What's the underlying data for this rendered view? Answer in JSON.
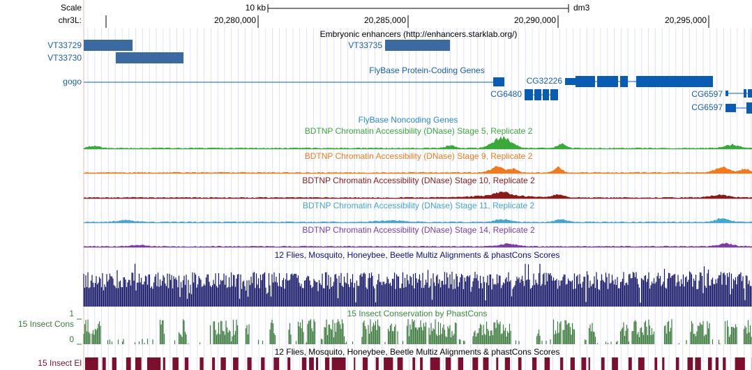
{
  "scale": {
    "label": "Scale",
    "bar": "10 kb",
    "assembly": "dm3"
  },
  "ruler": {
    "chrom": "chr3L:",
    "ticks": [
      "20,280,000",
      "20,285,000",
      "20,290,000",
      "20,295,000"
    ]
  },
  "tracks": {
    "enhancers": {
      "title": "Embryonic enhancers (http://enhancers.starklab.org/)",
      "items": [
        "VT33729",
        "VT33730",
        "VT33735"
      ]
    },
    "protein_genes": {
      "title": "FlyBase Protein-Coding Genes",
      "genes": [
        "gogo",
        "CG32226",
        "CG6480",
        "CG6597",
        "CG6597"
      ]
    },
    "noncoding": {
      "title": "FlyBase Noncoding Genes"
    },
    "dnase": [
      {
        "title": "BDTNP Chromatin Accessibility (DNase) Stage 5, Replicate 2",
        "color": "#3aa83a"
      },
      {
        "title": "BDTNP Chromatin Accessibility (DNase) Stage 9, Replicate 2",
        "color": "#f07a1e"
      },
      {
        "title": "BDTNP Chromatin Accessibility (DNase) Stage 10, Replicate 2",
        "color": "#8b1a1a"
      },
      {
        "title": "BDTNP Chromatin Accessibility (DNase) Stage 11, Replicate 2",
        "color": "#45a6d0"
      },
      {
        "title": "BDTNP Chromatin Accessibility (DNase) Stage 14, Replicate 2",
        "color": "#7a3fa0"
      }
    ],
    "multiz": {
      "title": "12 Flies, Mosquito, Honeybee, Beetle Multiz Alignments & phastCons Scores"
    },
    "phastcons": {
      "title": "15 Insect Conservation by PhastCons",
      "label": "15 Insect Cons",
      "ymax": 1,
      "ymin": 0
    },
    "elements": {
      "title": "12 Flies, Mosquito, Honeybee, Beetle Multiz Alignments & phastCons Scores",
      "label": "15 Insect El"
    }
  }
}
